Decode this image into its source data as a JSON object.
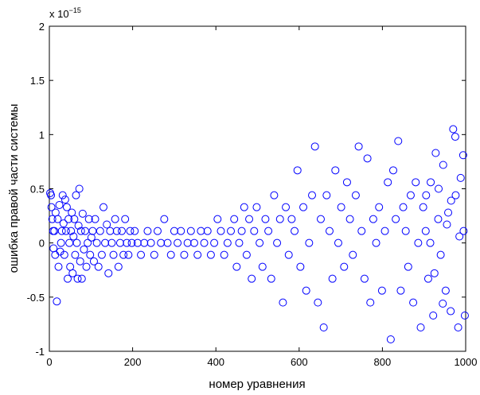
{
  "chart_data": {
    "type": "scatter",
    "x_label": "номер уравнения",
    "y_label": "ошибка правой части системы",
    "exponent_label": "x 10",
    "exponent": "−15",
    "color": "#0000ff",
    "marker": "circle",
    "xlim": [
      0,
      1000
    ],
    "xticks": [
      0,
      200,
      400,
      600,
      800,
      1000
    ],
    "ylim": [
      -1,
      2
    ],
    "yticks": [
      -1,
      -0.5,
      0,
      0.5,
      1,
      1.5,
      2
    ],
    "grid": false,
    "x": [
      2,
      4,
      5,
      7,
      9,
      10,
      12,
      14,
      15,
      18,
      20,
      22,
      24,
      26,
      28,
      30,
      32,
      34,
      36,
      38,
      40,
      42,
      44,
      46,
      48,
      50,
      52,
      54,
      56,
      58,
      60,
      62,
      64,
      66,
      68,
      70,
      72,
      74,
      76,
      78,
      80,
      83,
      86,
      89,
      92,
      95,
      98,
      101,
      104,
      107,
      110,
      114,
      118,
      122,
      126,
      130,
      134,
      138,
      142,
      146,
      150,
      154,
      158,
      162,
      166,
      170,
      174,
      178,
      182,
      186,
      190,
      194,
      198,
      205,
      212,
      220,
      228,
      236,
      244,
      252,
      260,
      268,
      276,
      284,
      292,
      300,
      308,
      316,
      324,
      332,
      340,
      348,
      356,
      364,
      372,
      380,
      388,
      396,
      404,
      412,
      420,
      428,
      436,
      444,
      450,
      456,
      462,
      468,
      474,
      480,
      486,
      492,
      498,
      505,
      512,
      519,
      526,
      533,
      540,
      547,
      554,
      561,
      568,
      575,
      582,
      589,
      596,
      603,
      610,
      617,
      624,
      631,
      638,
      645,
      652,
      659,
      666,
      673,
      680,
      687,
      694,
      701,
      708,
      715,
      722,
      729,
      736,
      743,
      750,
      757,
      764,
      771,
      778,
      785,
      792,
      799,
      806,
      813,
      820,
      826,
      832,
      838,
      844,
      850,
      856,
      862,
      868,
      874,
      880,
      886,
      892,
      898,
      904,
      910,
      916,
      922,
      928,
      934,
      940,
      946,
      952,
      958,
      964,
      970,
      976,
      982,
      988,
      994,
      998,
      905,
      925,
      955,
      965,
      985,
      995,
      975,
      945,
      915,
      935
    ],
    "values": [
      0.46,
      0.44,
      0.33,
      0.22,
      0.11,
      -0.05,
      0.11,
      -0.11,
      0.28,
      -0.54,
      0.22,
      -0.22,
      0.35,
      -0.08,
      0.0,
      0.11,
      0.44,
      0.18,
      -0.11,
      0.4,
      0.11,
      0.33,
      -0.33,
      0.22,
      0.0,
      -0.22,
      0.11,
      0.28,
      -0.28,
      0.06,
      0.22,
      -0.11,
      0.44,
      0.0,
      -0.33,
      0.16,
      0.5,
      -0.17,
      0.11,
      -0.33,
      0.27,
      -0.06,
      0.11,
      -0.22,
      0.0,
      0.22,
      -0.11,
      0.05,
      0.11,
      -0.17,
      0.22,
      0.0,
      -0.22,
      0.11,
      -0.11,
      0.33,
      0.0,
      0.17,
      -0.28,
      0.11,
      0.0,
      -0.11,
      0.22,
      0.11,
      -0.22,
      0.0,
      0.11,
      -0.11,
      0.22,
      0.0,
      -0.11,
      0.11,
      0.0,
      0.11,
      0.0,
      -0.11,
      0.0,
      0.11,
      0.0,
      -0.11,
      0.11,
      0.0,
      0.22,
      0.0,
      -0.11,
      0.11,
      0.0,
      0.11,
      -0.11,
      0.0,
      0.11,
      0.0,
      -0.11,
      0.11,
      0.0,
      0.11,
      -0.11,
      0.0,
      0.22,
      0.11,
      -0.11,
      0.0,
      0.11,
      0.22,
      -0.22,
      0.0,
      0.11,
      0.33,
      -0.11,
      0.22,
      -0.33,
      0.11,
      0.33,
      0.0,
      -0.22,
      0.22,
      0.11,
      -0.33,
      0.44,
      0.0,
      0.22,
      -0.55,
      0.33,
      -0.11,
      0.22,
      0.11,
      0.67,
      -0.22,
      0.33,
      -0.44,
      0.0,
      0.44,
      0.89,
      -0.55,
      0.22,
      -0.78,
      0.44,
      0.11,
      -0.33,
      0.67,
      0.0,
      0.33,
      -0.22,
      0.56,
      0.22,
      -0.11,
      0.44,
      0.89,
      0.11,
      -0.33,
      0.78,
      -0.55,
      0.22,
      0.0,
      0.33,
      -0.44,
      0.11,
      0.56,
      -0.89,
      0.67,
      0.22,
      0.94,
      -0.44,
      0.33,
      0.11,
      -0.22,
      0.44,
      -0.55,
      0.56,
      0.0,
      -0.78,
      0.33,
      0.11,
      -0.33,
      0.56,
      -0.67,
      0.83,
      0.22,
      -0.11,
      0.72,
      -0.44,
      0.28,
      -0.63,
      1.05,
      0.44,
      -0.78,
      0.6,
      0.81,
      -0.67,
      0.44,
      -0.28,
      0.17,
      0.39,
      0.06,
      0.11,
      0.98,
      -0.56,
      0.0,
      0.5
    ]
  }
}
